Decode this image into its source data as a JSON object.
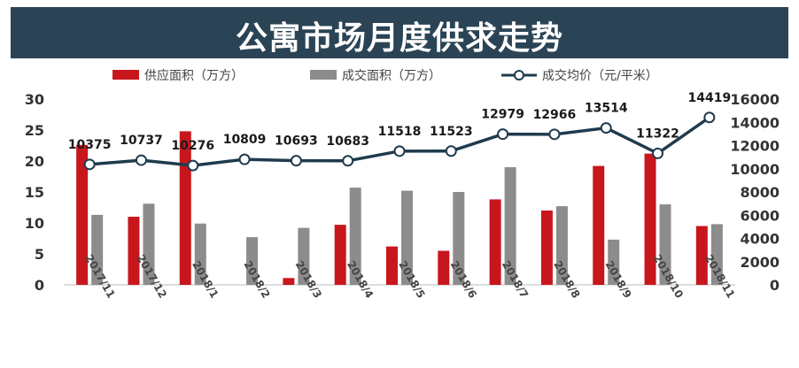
{
  "title": "公寓市场月度供求走势",
  "colors": {
    "supply": "#c8161d",
    "transaction": "#8c8c8c",
    "price": "#1f3b4d",
    "banner": "#2b4455"
  },
  "chart_data": {
    "type": "bar",
    "title": "公寓市场月度供求走势",
    "categories": [
      "2017/11",
      "2017/12",
      "2018/1",
      "2018/2",
      "2018/3",
      "2018/4",
      "2018/5",
      "2018/6",
      "2018/7",
      "2018/8",
      "2018/9",
      "2018/10",
      "2018/11"
    ],
    "series": [
      {
        "name": "供应面积（万方）",
        "type": "bar",
        "axis": "left",
        "values": [
          22.6,
          11.0,
          24.8,
          0,
          1.1,
          9.7,
          6.2,
          5.5,
          13.8,
          12.0,
          19.2,
          21.2,
          9.5
        ]
      },
      {
        "name": "成交面积（万方）",
        "type": "bar",
        "axis": "left",
        "values": [
          11.3,
          13.1,
          9.9,
          7.7,
          9.2,
          15.7,
          15.2,
          15.0,
          19.0,
          12.7,
          7.3,
          13.0,
          9.8
        ]
      },
      {
        "name": "成交均价（元/平米）",
        "type": "line",
        "axis": "right",
        "values": [
          10375,
          10737,
          10276,
          10809,
          10693,
          10683,
          11518,
          11523,
          12979,
          12966,
          13514,
          11322,
          14419
        ],
        "labels": [
          "10375",
          "10737",
          "10276",
          "10809",
          "10693",
          "10683",
          "11518",
          "11523",
          "12979",
          "12966",
          "13514",
          "11322",
          "14419"
        ]
      }
    ],
    "y_left": {
      "min": 0,
      "max": 30,
      "ticks": [
        "0",
        "5",
        "10",
        "15",
        "20",
        "25",
        "30"
      ]
    },
    "y_right": {
      "min": 0,
      "max": 16000,
      "ticks": [
        "0",
        "2000",
        "4000",
        "6000",
        "8000",
        "10000",
        "12000",
        "14000",
        "16000"
      ]
    },
    "legend": {
      "position": "top"
    },
    "grid": false
  }
}
